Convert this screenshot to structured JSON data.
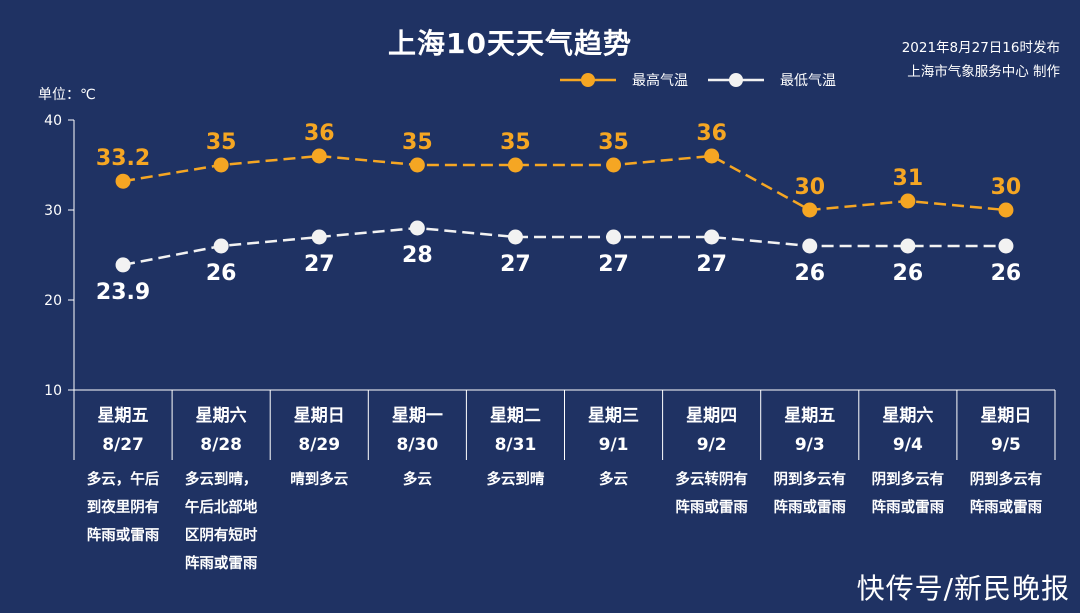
{
  "title": "上海10天天气趋势",
  "publish": {
    "date": "2021年8月27日16时发布",
    "org": "上海市气象服务中心 制作"
  },
  "unit_label": "单位：℃",
  "legend": [
    {
      "label": "最高气温",
      "color": "#f5a623"
    },
    {
      "label": "最低气温",
      "color": "#f2f2f2"
    }
  ],
  "watermark": "快传号/新民晚报",
  "colors": {
    "background": "#1f3263",
    "high": "#f5a623",
    "low": "#f2f2f2",
    "axis": "#ffffff"
  },
  "chart_data": {
    "type": "line",
    "title": "上海10天天气趋势",
    "ylim": [
      10,
      40
    ],
    "yticks": [
      "10",
      "20",
      "30",
      "40"
    ],
    "grid": false,
    "legend_position": "top-right",
    "days": [
      {
        "weekday": "星期五",
        "date": "8/27",
        "weather": [
          "多云，午后",
          "到夜里阴有",
          "阵雨或雷雨"
        ]
      },
      {
        "weekday": "星期六",
        "date": "8/28",
        "weather": [
          "多云到晴，",
          "午后北部地",
          "区阴有短时",
          "阵雨或雷雨"
        ]
      },
      {
        "weekday": "星期日",
        "date": "8/29",
        "weather": [
          "晴到多云"
        ]
      },
      {
        "weekday": "星期一",
        "date": "8/30",
        "weather": [
          "多云"
        ]
      },
      {
        "weekday": "星期二",
        "date": "8/31",
        "weather": [
          "多云到晴"
        ]
      },
      {
        "weekday": "星期三",
        "date": "9/1",
        "weather": [
          "多云"
        ]
      },
      {
        "weekday": "星期四",
        "date": "9/2",
        "weather": [
          "多云转阴有",
          "阵雨或雷雨"
        ]
      },
      {
        "weekday": "星期五",
        "date": "9/3",
        "weather": [
          "阴到多云有",
          "阵雨或雷雨"
        ]
      },
      {
        "weekday": "星期六",
        "date": "9/4",
        "weather": [
          "阴到多云有",
          "阵雨或雷雨"
        ]
      },
      {
        "weekday": "星期日",
        "date": "9/5",
        "weather": [
          "阴到多云有",
          "阵雨或雷雨"
        ]
      }
    ],
    "series": [
      {
        "name": "最高气温",
        "values": [
          33.2,
          35,
          36,
          35,
          35,
          35,
          36,
          30,
          31,
          30
        ],
        "labels": [
          "33.2",
          "35",
          "36",
          "35",
          "35",
          "35",
          "36",
          "30",
          "31",
          "30"
        ]
      },
      {
        "name": "最低气温",
        "values": [
          23.9,
          26,
          27,
          28,
          27,
          27,
          27,
          26,
          26,
          26
        ],
        "labels": [
          "23.9",
          "26",
          "27",
          "28",
          "27",
          "27",
          "27",
          "26",
          "26",
          "26"
        ]
      }
    ]
  }
}
